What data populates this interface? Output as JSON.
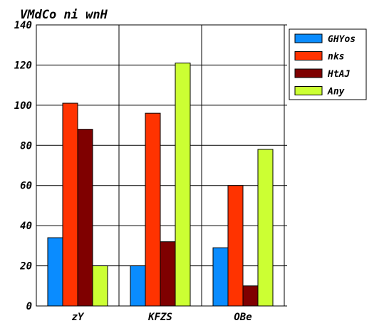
{
  "chart_data": {
    "type": "bar",
    "title": "VMdCo ni wnH",
    "xlabel": "",
    "ylabel": "",
    "categories": [
      "zY",
      "KFZS",
      "OBe"
    ],
    "series": [
      {
        "name": "GHYos",
        "color": "#0a8cff",
        "values": [
          34,
          20,
          29
        ]
      },
      {
        "name": "nks",
        "color": "#ff3300",
        "values": [
          101,
          96,
          60
        ]
      },
      {
        "name": "HtAJ",
        "color": "#7f0000",
        "values": [
          88,
          32,
          10
        ]
      },
      {
        "name": "Any",
        "color": "#ccff33",
        "values": [
          20,
          121,
          78
        ]
      }
    ],
    "ylim": [
      0,
      140
    ],
    "yticks": [
      0,
      20,
      40,
      60,
      80,
      100,
      120,
      140
    ],
    "grid": true,
    "legend_position": "top-right"
  }
}
